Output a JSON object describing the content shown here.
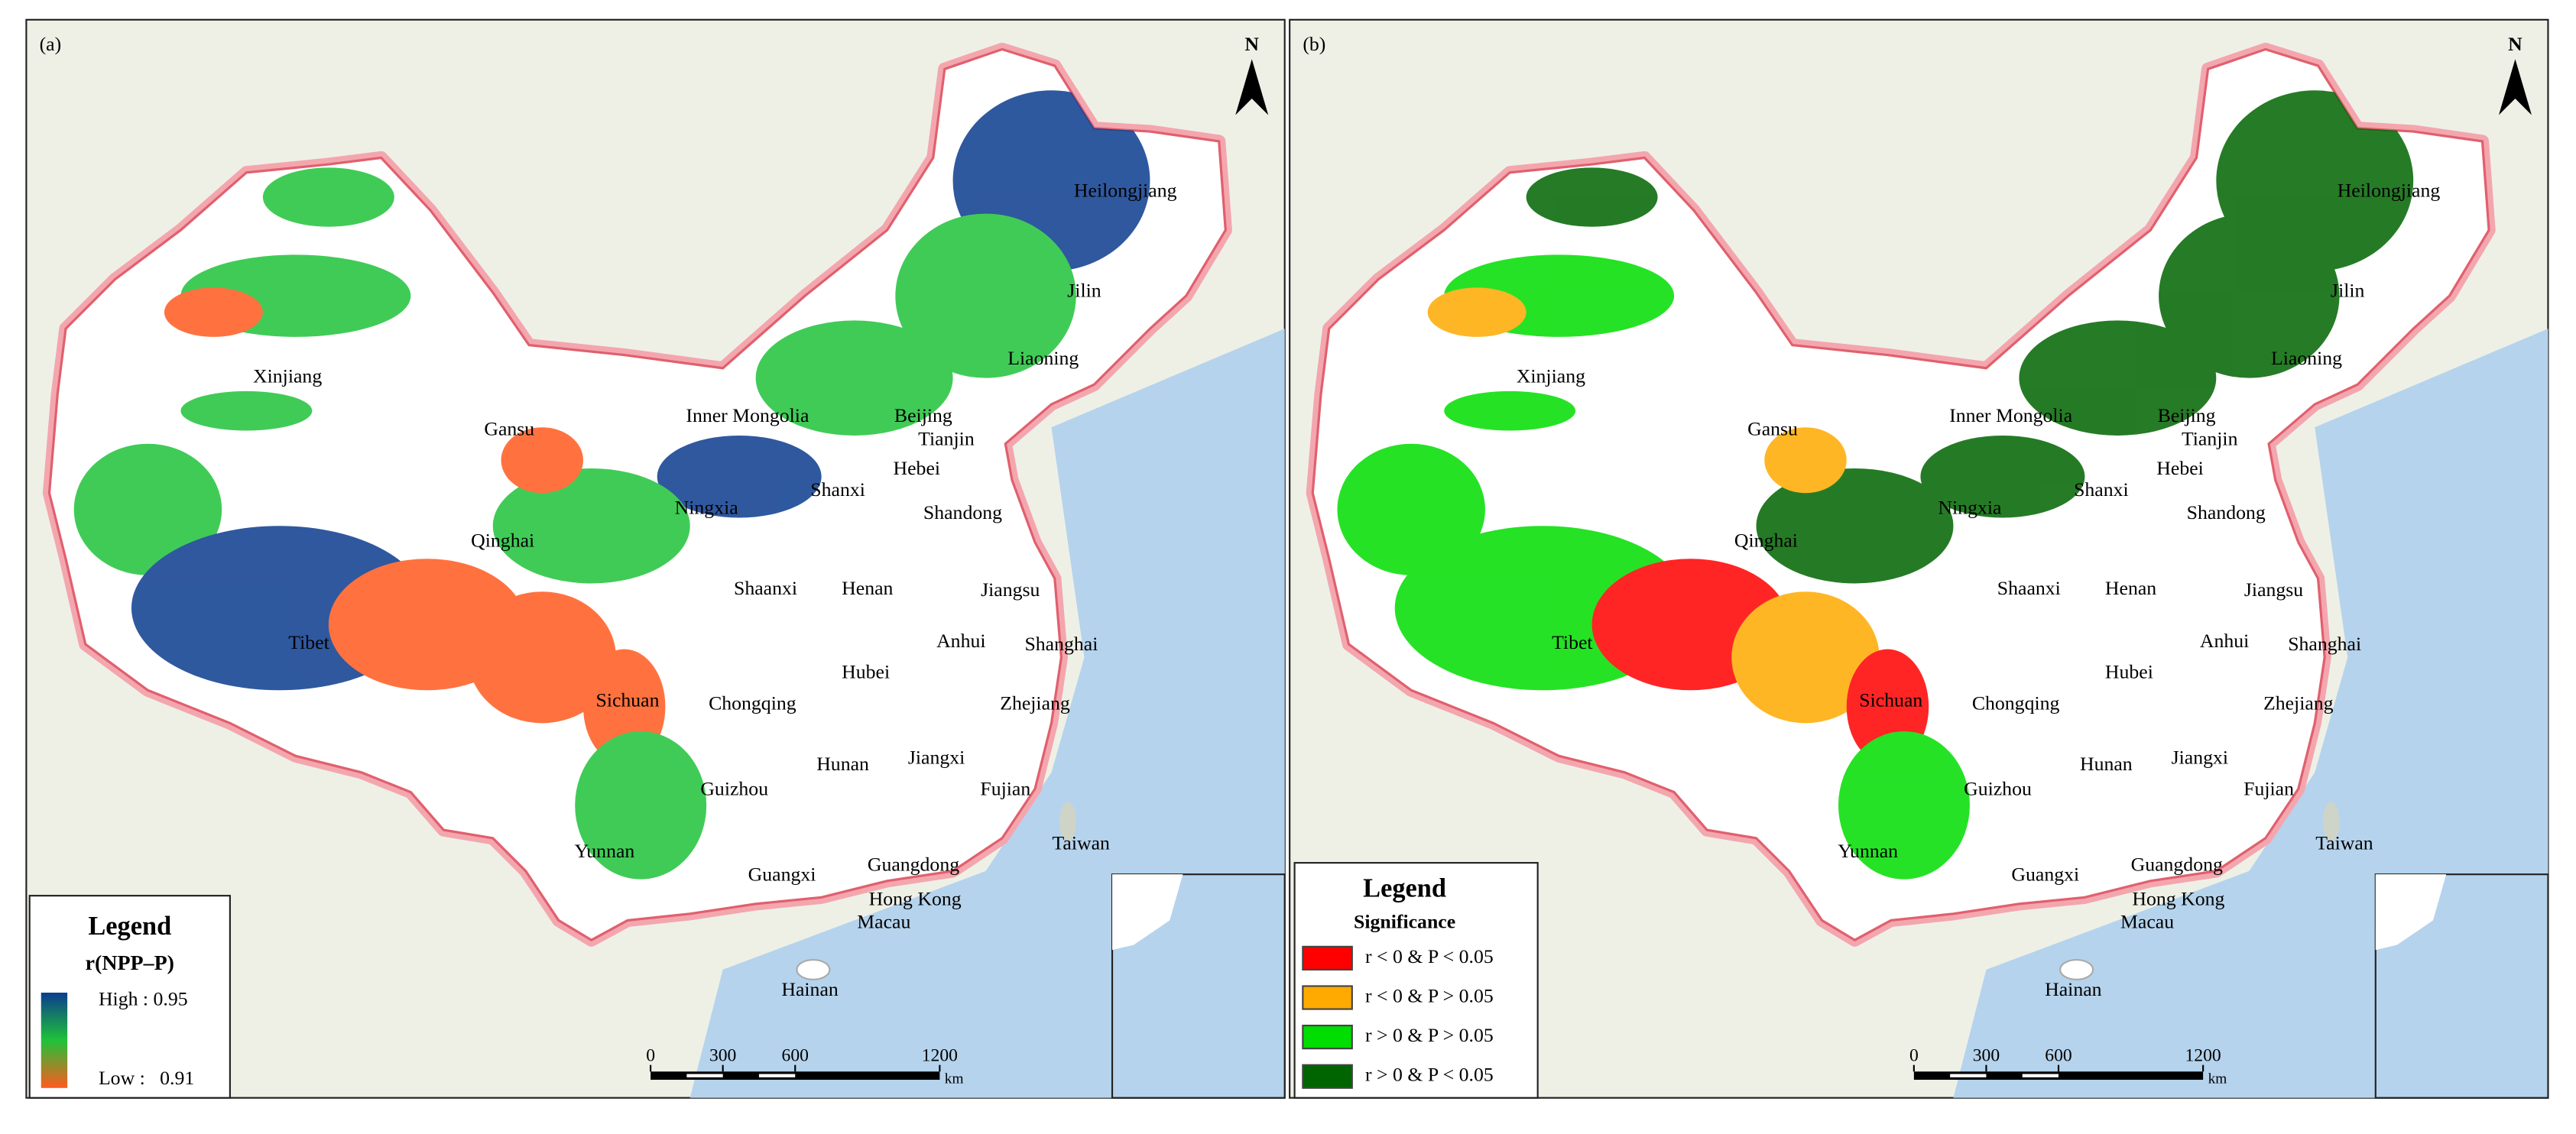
{
  "panels": [
    {
      "label": "(a)",
      "north": "N",
      "legend": {
        "title": "Legend",
        "variable": "r(NPP–P)",
        "high_label": "High : 0.95",
        "low_label": "Low :   0.91",
        "high_color": "#0b3c8e",
        "mid_color": "#1fc23a",
        "low_color": "#ff5a1e"
      },
      "scale_bar": {
        "ticks": [
          0,
          300,
          600,
          1200
        ],
        "unit": "km"
      }
    },
    {
      "label": "(b)",
      "north": "N",
      "legend": {
        "title": "Legend",
        "variable": "Significance",
        "items": [
          {
            "label": "r < 0 & P < 0.05",
            "color": "#ff0000"
          },
          {
            "label": "r < 0 & P > 0.05",
            "color": "#ffaa00"
          },
          {
            "label": "r > 0 & P > 0.05",
            "color": "#00dd00"
          },
          {
            "label": "r > 0 & P < 0.05",
            "color": "#006400"
          }
        ]
      },
      "scale_bar": {
        "ticks": [
          0,
          300,
          600,
          1200
        ],
        "unit": "km"
      }
    }
  ],
  "province_labels": [
    "Heilongjiang",
    "Jilin",
    "Liaoning",
    "Xinjiang",
    "Gansu",
    "Inner Mongolia",
    "Beijing",
    "Tianjin",
    "Hebei",
    "Shanxi",
    "Ningxia",
    "Shandong",
    "Qinghai",
    "Shaanxi",
    "Henan",
    "Jiangsu",
    "Anhui",
    "Shanghai",
    "Tibet",
    "Hubei",
    "Sichuan",
    "Chongqing",
    "Zhejiang",
    "Jiangxi",
    "Hunan",
    "Guizhou",
    "Fujian",
    "Taiwan",
    "Yunnan",
    "Guangxi",
    "Guangdong",
    "Hong Kong",
    "Macau",
    "Hainan"
  ]
}
